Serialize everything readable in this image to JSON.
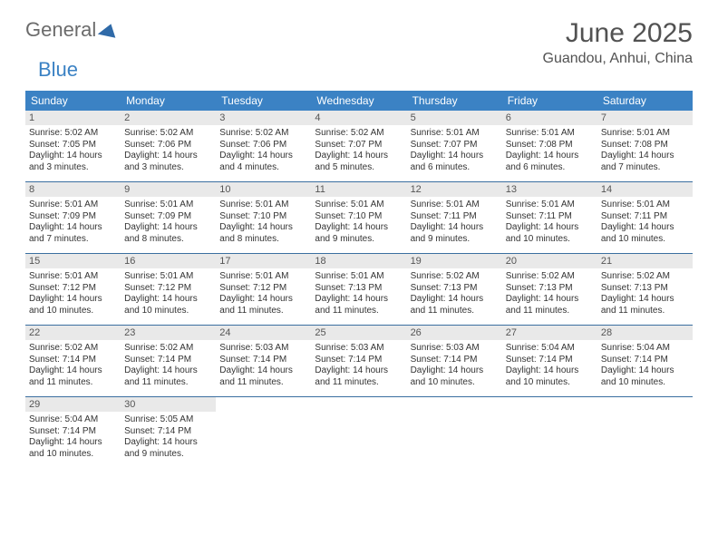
{
  "logo": {
    "word1": "General",
    "word2": "Blue"
  },
  "title": "June 2025",
  "location": "Guandou, Anhui, China",
  "colors": {
    "header_bg": "#3b82c4",
    "header_text": "#ffffff",
    "daynum_bg": "#e9e9e9",
    "week_divider": "#3b6fa0",
    "text": "#333333",
    "title_color": "#525252"
  },
  "weekdays": [
    "Sunday",
    "Monday",
    "Tuesday",
    "Wednesday",
    "Thursday",
    "Friday",
    "Saturday"
  ],
  "weeks": [
    [
      {
        "day": "1",
        "sunrise": "Sunrise: 5:02 AM",
        "sunset": "Sunset: 7:05 PM",
        "daylight1": "Daylight: 14 hours",
        "daylight2": "and 3 minutes."
      },
      {
        "day": "2",
        "sunrise": "Sunrise: 5:02 AM",
        "sunset": "Sunset: 7:06 PM",
        "daylight1": "Daylight: 14 hours",
        "daylight2": "and 3 minutes."
      },
      {
        "day": "3",
        "sunrise": "Sunrise: 5:02 AM",
        "sunset": "Sunset: 7:06 PM",
        "daylight1": "Daylight: 14 hours",
        "daylight2": "and 4 minutes."
      },
      {
        "day": "4",
        "sunrise": "Sunrise: 5:02 AM",
        "sunset": "Sunset: 7:07 PM",
        "daylight1": "Daylight: 14 hours",
        "daylight2": "and 5 minutes."
      },
      {
        "day": "5",
        "sunrise": "Sunrise: 5:01 AM",
        "sunset": "Sunset: 7:07 PM",
        "daylight1": "Daylight: 14 hours",
        "daylight2": "and 6 minutes."
      },
      {
        "day": "6",
        "sunrise": "Sunrise: 5:01 AM",
        "sunset": "Sunset: 7:08 PM",
        "daylight1": "Daylight: 14 hours",
        "daylight2": "and 6 minutes."
      },
      {
        "day": "7",
        "sunrise": "Sunrise: 5:01 AM",
        "sunset": "Sunset: 7:08 PM",
        "daylight1": "Daylight: 14 hours",
        "daylight2": "and 7 minutes."
      }
    ],
    [
      {
        "day": "8",
        "sunrise": "Sunrise: 5:01 AM",
        "sunset": "Sunset: 7:09 PM",
        "daylight1": "Daylight: 14 hours",
        "daylight2": "and 7 minutes."
      },
      {
        "day": "9",
        "sunrise": "Sunrise: 5:01 AM",
        "sunset": "Sunset: 7:09 PM",
        "daylight1": "Daylight: 14 hours",
        "daylight2": "and 8 minutes."
      },
      {
        "day": "10",
        "sunrise": "Sunrise: 5:01 AM",
        "sunset": "Sunset: 7:10 PM",
        "daylight1": "Daylight: 14 hours",
        "daylight2": "and 8 minutes."
      },
      {
        "day": "11",
        "sunrise": "Sunrise: 5:01 AM",
        "sunset": "Sunset: 7:10 PM",
        "daylight1": "Daylight: 14 hours",
        "daylight2": "and 9 minutes."
      },
      {
        "day": "12",
        "sunrise": "Sunrise: 5:01 AM",
        "sunset": "Sunset: 7:11 PM",
        "daylight1": "Daylight: 14 hours",
        "daylight2": "and 9 minutes."
      },
      {
        "day": "13",
        "sunrise": "Sunrise: 5:01 AM",
        "sunset": "Sunset: 7:11 PM",
        "daylight1": "Daylight: 14 hours",
        "daylight2": "and 10 minutes."
      },
      {
        "day": "14",
        "sunrise": "Sunrise: 5:01 AM",
        "sunset": "Sunset: 7:11 PM",
        "daylight1": "Daylight: 14 hours",
        "daylight2": "and 10 minutes."
      }
    ],
    [
      {
        "day": "15",
        "sunrise": "Sunrise: 5:01 AM",
        "sunset": "Sunset: 7:12 PM",
        "daylight1": "Daylight: 14 hours",
        "daylight2": "and 10 minutes."
      },
      {
        "day": "16",
        "sunrise": "Sunrise: 5:01 AM",
        "sunset": "Sunset: 7:12 PM",
        "daylight1": "Daylight: 14 hours",
        "daylight2": "and 10 minutes."
      },
      {
        "day": "17",
        "sunrise": "Sunrise: 5:01 AM",
        "sunset": "Sunset: 7:12 PM",
        "daylight1": "Daylight: 14 hours",
        "daylight2": "and 11 minutes."
      },
      {
        "day": "18",
        "sunrise": "Sunrise: 5:01 AM",
        "sunset": "Sunset: 7:13 PM",
        "daylight1": "Daylight: 14 hours",
        "daylight2": "and 11 minutes."
      },
      {
        "day": "19",
        "sunrise": "Sunrise: 5:02 AM",
        "sunset": "Sunset: 7:13 PM",
        "daylight1": "Daylight: 14 hours",
        "daylight2": "and 11 minutes."
      },
      {
        "day": "20",
        "sunrise": "Sunrise: 5:02 AM",
        "sunset": "Sunset: 7:13 PM",
        "daylight1": "Daylight: 14 hours",
        "daylight2": "and 11 minutes."
      },
      {
        "day": "21",
        "sunrise": "Sunrise: 5:02 AM",
        "sunset": "Sunset: 7:13 PM",
        "daylight1": "Daylight: 14 hours",
        "daylight2": "and 11 minutes."
      }
    ],
    [
      {
        "day": "22",
        "sunrise": "Sunrise: 5:02 AM",
        "sunset": "Sunset: 7:14 PM",
        "daylight1": "Daylight: 14 hours",
        "daylight2": "and 11 minutes."
      },
      {
        "day": "23",
        "sunrise": "Sunrise: 5:02 AM",
        "sunset": "Sunset: 7:14 PM",
        "daylight1": "Daylight: 14 hours",
        "daylight2": "and 11 minutes."
      },
      {
        "day": "24",
        "sunrise": "Sunrise: 5:03 AM",
        "sunset": "Sunset: 7:14 PM",
        "daylight1": "Daylight: 14 hours",
        "daylight2": "and 11 minutes."
      },
      {
        "day": "25",
        "sunrise": "Sunrise: 5:03 AM",
        "sunset": "Sunset: 7:14 PM",
        "daylight1": "Daylight: 14 hours",
        "daylight2": "and 11 minutes."
      },
      {
        "day": "26",
        "sunrise": "Sunrise: 5:03 AM",
        "sunset": "Sunset: 7:14 PM",
        "daylight1": "Daylight: 14 hours",
        "daylight2": "and 10 minutes."
      },
      {
        "day": "27",
        "sunrise": "Sunrise: 5:04 AM",
        "sunset": "Sunset: 7:14 PM",
        "daylight1": "Daylight: 14 hours",
        "daylight2": "and 10 minutes."
      },
      {
        "day": "28",
        "sunrise": "Sunrise: 5:04 AM",
        "sunset": "Sunset: 7:14 PM",
        "daylight1": "Daylight: 14 hours",
        "daylight2": "and 10 minutes."
      }
    ],
    [
      {
        "day": "29",
        "sunrise": "Sunrise: 5:04 AM",
        "sunset": "Sunset: 7:14 PM",
        "daylight1": "Daylight: 14 hours",
        "daylight2": "and 10 minutes."
      },
      {
        "day": "30",
        "sunrise": "Sunrise: 5:05 AM",
        "sunset": "Sunset: 7:14 PM",
        "daylight1": "Daylight: 14 hours",
        "daylight2": "and 9 minutes."
      },
      null,
      null,
      null,
      null,
      null
    ]
  ]
}
